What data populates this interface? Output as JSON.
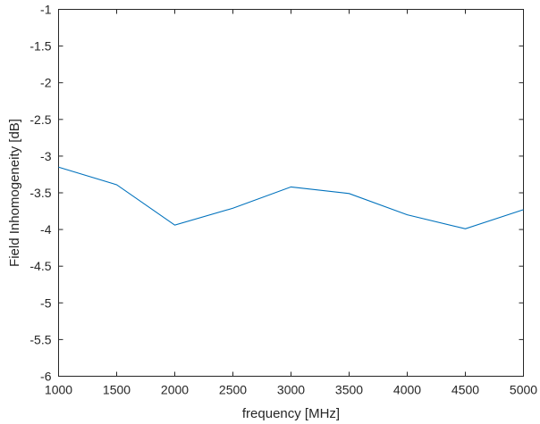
{
  "chart_data": {
    "type": "line",
    "title": "",
    "xlabel": "frequency [MHz]",
    "ylabel": "Field Inhomogeneity [dB]",
    "xlim": [
      1000,
      5000
    ],
    "ylim": [
      -6,
      -1
    ],
    "xticks": [
      1000,
      1500,
      2000,
      2500,
      3000,
      3500,
      4000,
      4500,
      5000
    ],
    "yticks": [
      -1,
      -1.5,
      -2,
      -2.5,
      -3,
      -3.5,
      -4,
      -4.5,
      -5,
      -5.5,
      -6
    ],
    "xtick_labels": [
      "1000",
      "1500",
      "2000",
      "2500",
      "3000",
      "3500",
      "4000",
      "4500",
      "5000"
    ],
    "ytick_labels": [
      "-1",
      "-1.5",
      "-2",
      "-2.5",
      "-3",
      "-3.5",
      "-4",
      "-4.5",
      "-5",
      "-5.5",
      "-6"
    ],
    "grid": false,
    "series": [
      {
        "color": "#0072BD",
        "x": [
          1000,
          1500,
          2000,
          2500,
          3000,
          3500,
          4000,
          4500,
          5000
        ],
        "y": [
          -3.15,
          -3.39,
          -3.94,
          -3.71,
          -3.42,
          -3.51,
          -3.8,
          -3.99,
          -3.73
        ]
      }
    ]
  }
}
